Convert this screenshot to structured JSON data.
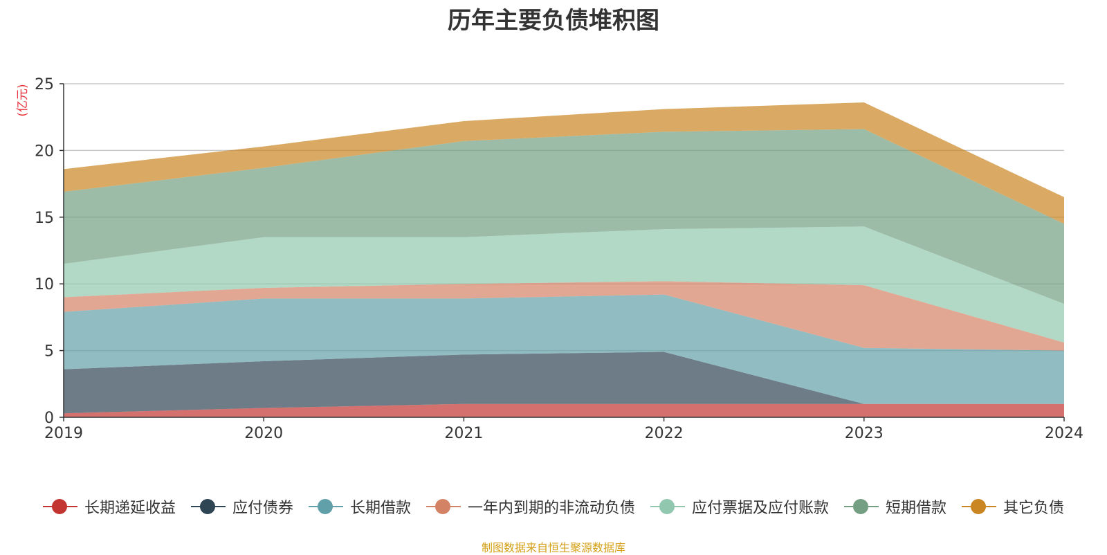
{
  "chart_data": {
    "type": "area",
    "stacked": true,
    "title": "历年主要负债堆积图",
    "ylabel": "(亿元)",
    "xlabel": "",
    "categories": [
      "2019",
      "2020",
      "2021",
      "2022",
      "2023",
      "2024"
    ],
    "ylim": [
      0,
      25
    ],
    "yticks": [
      0,
      5,
      10,
      15,
      20,
      25
    ],
    "grid": true,
    "legend_position": "bottom",
    "series": [
      {
        "name": "长期递延收益",
        "color": "#c23531",
        "values": [
          0.3,
          0.7,
          1.0,
          1.0,
          1.0,
          1.0
        ]
      },
      {
        "name": "应付债券",
        "color": "#2f4554",
        "values": [
          3.3,
          3.5,
          3.7,
          3.9,
          0.0,
          0.0
        ]
      },
      {
        "name": "长期借款",
        "color": "#61a0a8",
        "values": [
          4.3,
          4.7,
          4.2,
          4.3,
          4.2,
          4.0
        ]
      },
      {
        "name": "一年内到期的非流动负债",
        "color": "#d48265",
        "values": [
          1.1,
          0.8,
          1.1,
          1.0,
          4.7,
          0.6
        ]
      },
      {
        "name": "应付票据及应付账款",
        "color": "#91c7ae",
        "values": [
          2.5,
          3.8,
          3.5,
          3.9,
          4.4,
          2.9
        ]
      },
      {
        "name": "短期借款",
        "color": "#749f83",
        "values": [
          5.4,
          5.2,
          7.2,
          7.3,
          7.3,
          6.0
        ]
      },
      {
        "name": "其它负债",
        "color": "#ca8622",
        "values": [
          1.7,
          1.6,
          1.5,
          1.7,
          2.0,
          2.0
        ]
      }
    ],
    "source": "制图数据来自恒生聚源数据库"
  }
}
